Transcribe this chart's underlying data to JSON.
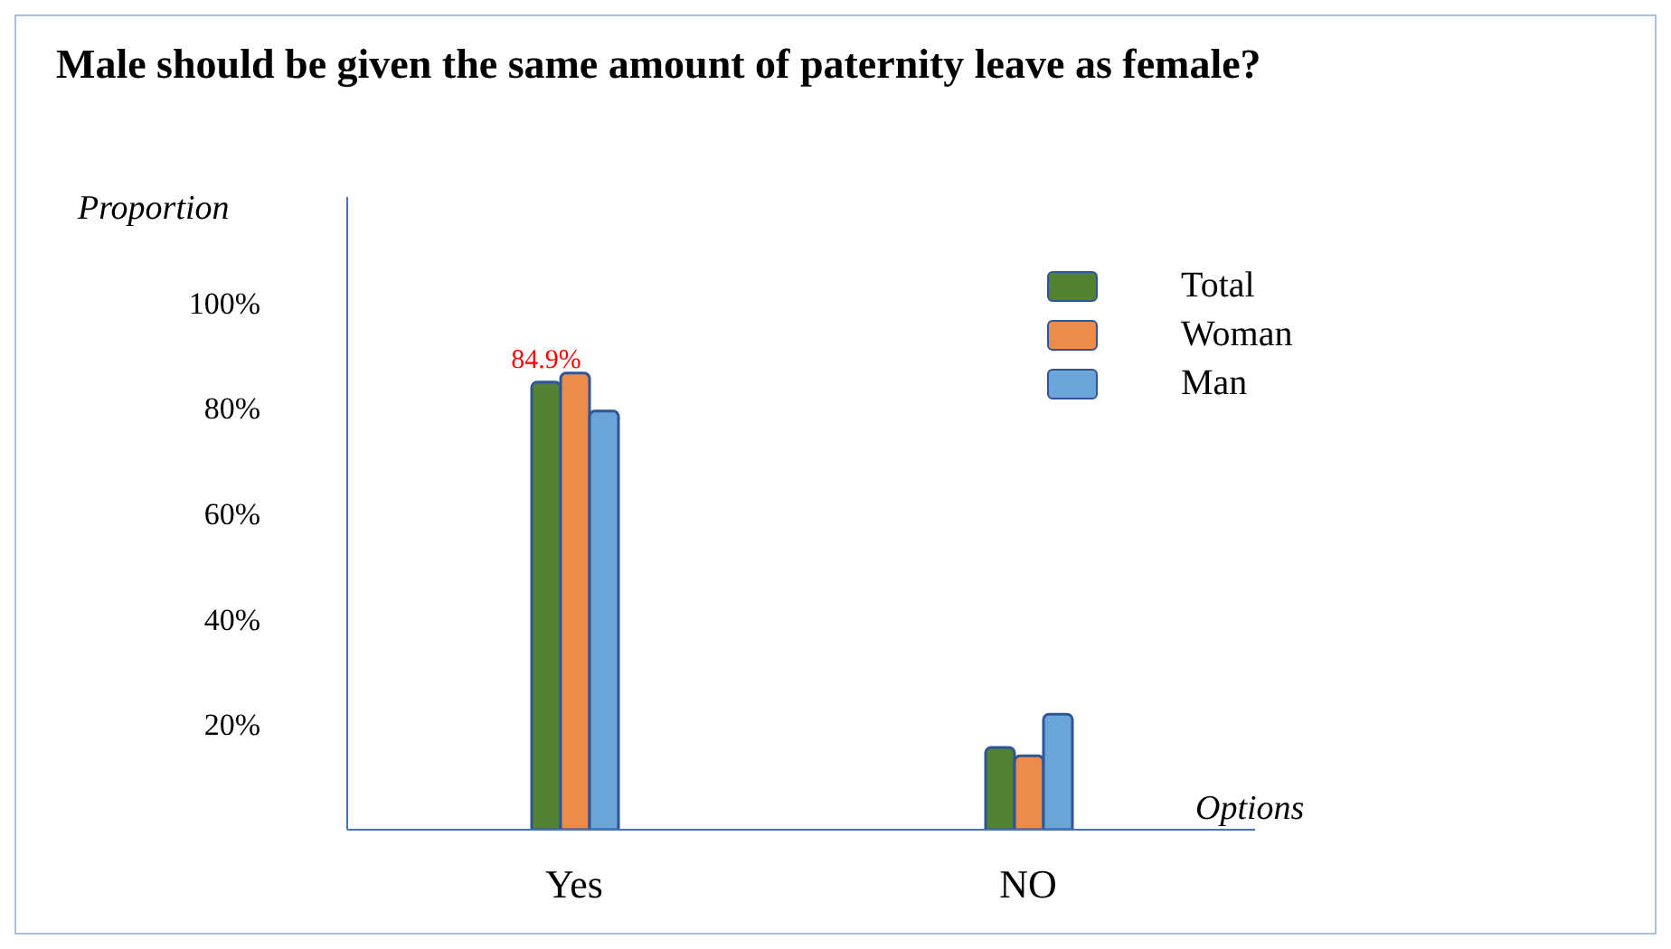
{
  "chart_data": {
    "type": "bar",
    "title": "Male should be given the same amount of paternity leave as female?",
    "xlabel": "Options",
    "ylabel": "Proportion",
    "categories": [
      "Yes",
      "NO"
    ],
    "series": [
      {
        "name": "Total",
        "color": "#548235",
        "values": [
          84.9,
          15.6
        ],
        "value_labels": [
          "84.9%",
          null
        ]
      },
      {
        "name": "Woman",
        "color": "#ed8b4a",
        "values": [
          86.6,
          14.0
        ]
      },
      {
        "name": "Man",
        "color": "#6aa4d9",
        "values": [
          79.4,
          21.9
        ]
      }
    ],
    "ylim": [
      0,
      120
    ],
    "yticks": [
      {
        "value": 20,
        "label": "20%"
      },
      {
        "value": 40,
        "label": "40%"
      },
      {
        "value": 60,
        "label": "60%"
      },
      {
        "value": 80,
        "label": "80%"
      },
      {
        "value": 100,
        "label": "100%"
      }
    ],
    "legend": "top right"
  }
}
